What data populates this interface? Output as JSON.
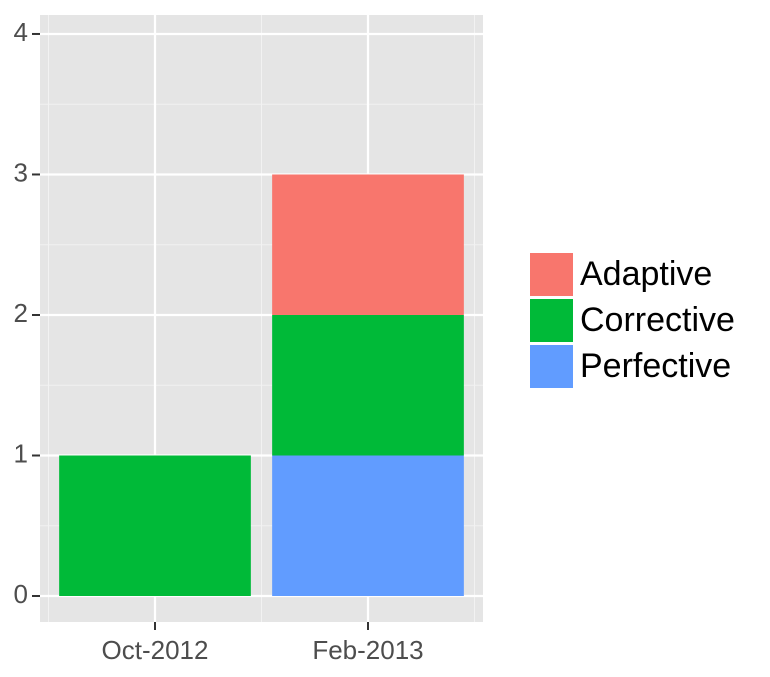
{
  "chart_data": {
    "type": "stacked-bar",
    "categories": [
      "Oct-2012",
      "Feb-2013"
    ],
    "series": [
      {
        "name": "Adaptive",
        "color": "#f8766d",
        "values": [
          0,
          1
        ]
      },
      {
        "name": "Corrective",
        "color": "#00ba38",
        "values": [
          1,
          1
        ]
      },
      {
        "name": "Perfective",
        "color": "#619cff",
        "values": [
          0,
          1
        ]
      }
    ],
    "ylim": [
      -0.185,
      4.135
    ],
    "yticks": [
      0,
      1,
      2,
      3,
      4
    ],
    "grid": true,
    "legend": "right"
  }
}
